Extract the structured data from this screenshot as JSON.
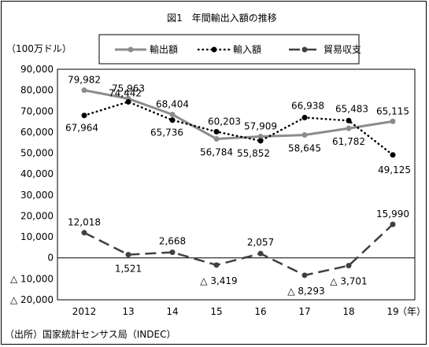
{
  "figure_title": "図1　年間輸出入額の推移",
  "unit_label": "（100万ドル）",
  "source_note": "（出所）国家統計センサス局（INDEC）",
  "x_unit": "（年）",
  "chart_data": {
    "type": "line",
    "title": "図1　年間輸出入額の推移",
    "ylabel": "（100万ドル）",
    "xlabel": "（年）",
    "ylim": [
      -20000,
      90000
    ],
    "y_ticks": [
      90000,
      80000,
      70000,
      60000,
      50000,
      40000,
      30000,
      20000,
      10000,
      0,
      -10000,
      -20000
    ],
    "y_tick_labels": [
      "90,000",
      "80,000",
      "70,000",
      "60,000",
      "50,000",
      "40,000",
      "30,000",
      "20,000",
      "10,000",
      "0",
      "△ 10,000",
      "△ 20,000"
    ],
    "categories": [
      "2012",
      "13",
      "14",
      "15",
      "16",
      "17",
      "18",
      "19"
    ],
    "legend_position": "top",
    "grid": false,
    "series": [
      {
        "name": "輸出額",
        "style": "solid",
        "color": "#8c8c8c",
        "values": [
          79982,
          75963,
          68404,
          56784,
          57909,
          58645,
          61782,
          65115
        ],
        "labels": [
          "79,982",
          "75,963",
          "68,404",
          "56,784",
          "57,909",
          "58,645",
          "61,782",
          "65,115"
        ]
      },
      {
        "name": "輸入額",
        "style": "dotted",
        "color": "#000000",
        "values": [
          67964,
          74442,
          65736,
          60203,
          55852,
          66938,
          65483,
          49125
        ],
        "labels": [
          "67,964",
          "74,442",
          "65,736",
          "60,203",
          "55,852",
          "66,938",
          "65,483",
          "49,125"
        ]
      },
      {
        "name": "貿易収支",
        "style": "dashed",
        "color": "#404040",
        "values": [
          12018,
          1521,
          2668,
          -3419,
          2057,
          -8293,
          -3701,
          15990
        ],
        "labels": [
          "12,018",
          "1,521",
          "2,668",
          "△ 3,419",
          "2,057",
          "△ 8,293",
          "△ 3,701",
          "15,990"
        ]
      }
    ]
  }
}
